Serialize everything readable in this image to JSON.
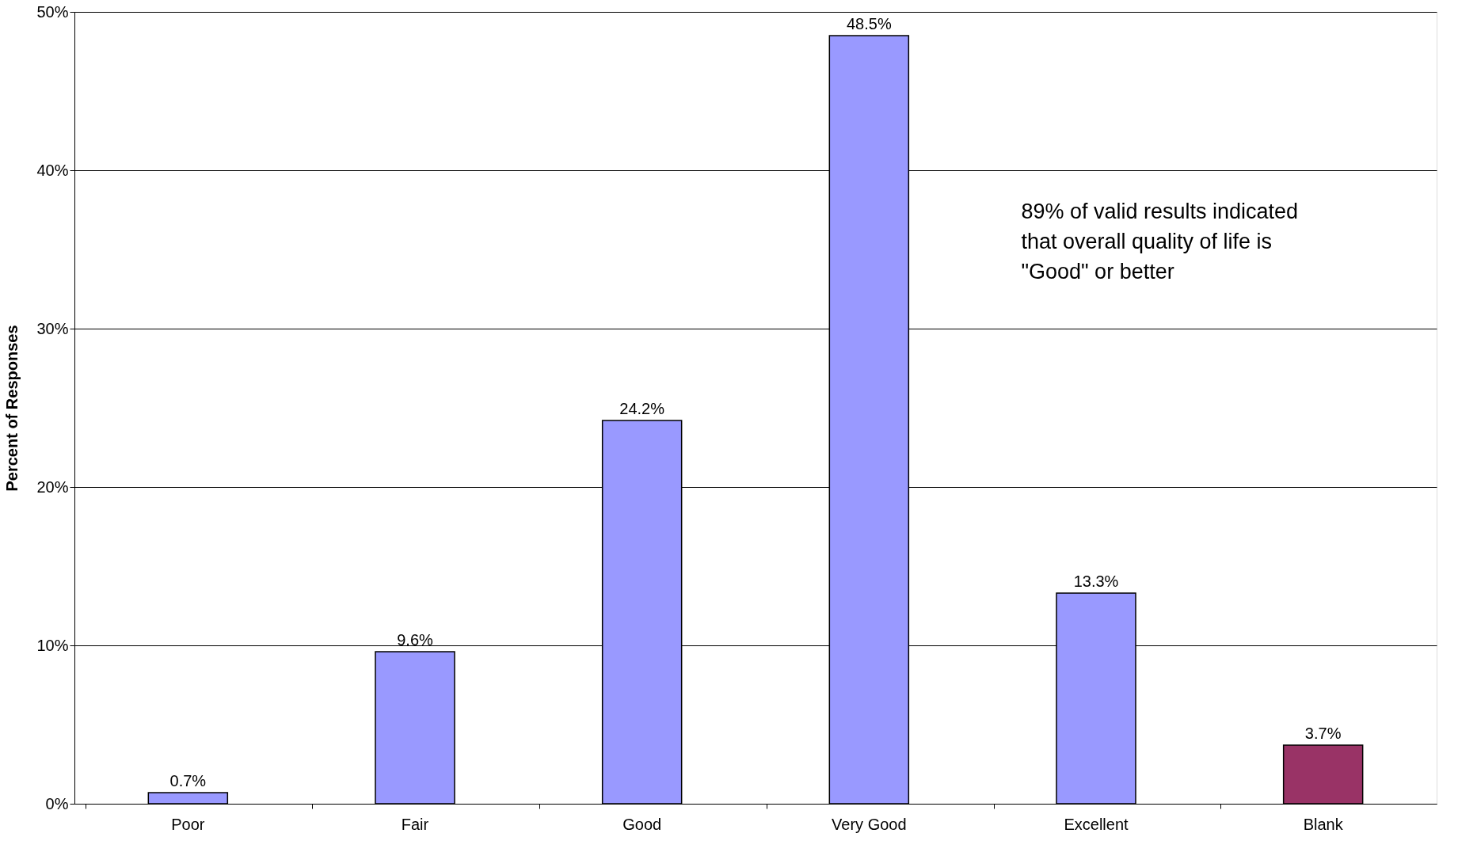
{
  "chart_data": {
    "type": "bar",
    "ylabel": "Percent of Responses",
    "categories": [
      "Poor",
      "Fair",
      "Good",
      "Very Good",
      "Excellent",
      "Blank"
    ],
    "values": [
      0.7,
      9.6,
      24.2,
      48.5,
      13.3,
      3.7
    ],
    "colors": [
      "#9999ff",
      "#9999ff",
      "#9999ff",
      "#9999ff",
      "#9999ff",
      "#993366"
    ],
    "value_labels": [
      "0.7%",
      "9.6%",
      "24.2%",
      "48.5%",
      "13.3%",
      "3.7%"
    ],
    "ylim": [
      0,
      50
    ],
    "yticks": [
      {
        "value": 0,
        "label": "0%"
      },
      {
        "value": 10,
        "label": "10%"
      },
      {
        "value": 20,
        "label": "20%"
      },
      {
        "value": 30,
        "label": "30%"
      },
      {
        "value": 40,
        "label": "40%"
      },
      {
        "value": 50,
        "label": "50%"
      }
    ],
    "grid": "y",
    "annotations": [
      "89% of valid results indicated that overall quality of life is \"Good\" or better"
    ]
  }
}
